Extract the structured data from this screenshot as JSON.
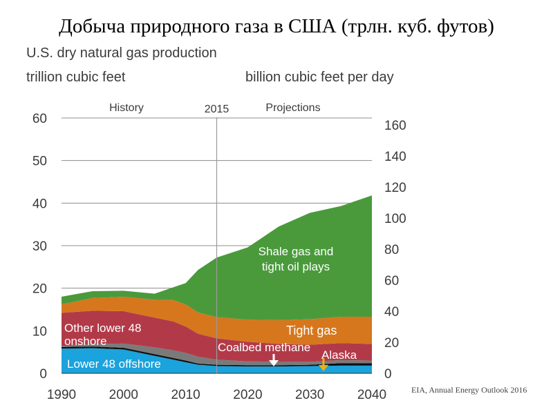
{
  "slide_title": "Добыча природного газа в США (трлн. куб. футов)",
  "source": "EIA, Annual Energy Outlook 2016",
  "chart_data": {
    "type": "area",
    "title": "U.S. dry natural gas production",
    "left_unit": "trillion cubic feet",
    "right_unit": "billion cubic feet per day",
    "period_labels": {
      "history": "History",
      "divider": "2015",
      "projections": "Projections"
    },
    "divider_year": 2015,
    "xlim": [
      1990,
      2040
    ],
    "ylim": [
      0,
      60
    ],
    "y_ticks": [
      0,
      10,
      20,
      30,
      40,
      50,
      60
    ],
    "x_ticks": [
      1990,
      2000,
      2010,
      2020,
      2030,
      2040
    ],
    "right_ylim": [
      0,
      164.4
    ],
    "right_ticks": [
      0,
      20,
      40,
      60,
      80,
      100,
      120,
      140,
      160
    ],
    "grid": true,
    "x": [
      1990,
      1995,
      2000,
      2005,
      2008,
      2010,
      2012,
      2015,
      2020,
      2025,
      2030,
      2035,
      2040
    ],
    "series": [
      {
        "name": "Lower 48 offshore",
        "label": "Lower 48 offshore",
        "color": "#1aa3dc",
        "label_color": "#ffffff",
        "values": [
          5.8,
          5.9,
          5.6,
          4.1,
          3.2,
          2.6,
          2.0,
          1.7,
          1.6,
          1.6,
          1.7,
          1.8,
          1.8
        ]
      },
      {
        "name": "Alaska",
        "label": "Alaska",
        "color": "#111111",
        "label_color": "#ffffff",
        "values": [
          0.4,
          0.4,
          0.4,
          0.4,
          0.4,
          0.4,
          0.3,
          0.3,
          0.3,
          0.3,
          0.3,
          0.6,
          0.6
        ]
      },
      {
        "name": "Coalbed methane",
        "label": "Coalbed methane",
        "color": "#7a7a7a",
        "label_color": "#ffffff",
        "values": [
          0.2,
          0.6,
          1.0,
          1.6,
          1.8,
          1.8,
          1.6,
          1.2,
          0.9,
          0.8,
          0.7,
          0.7,
          0.6
        ]
      },
      {
        "name": "Other lower 48 onshore",
        "label": "Other lower 48 onshore",
        "color": "#b23a48",
        "label_color": "#ffffff",
        "values": [
          7.8,
          7.8,
          7.6,
          7.0,
          6.8,
          6.2,
          5.4,
          5.0,
          4.6,
          4.2,
          4.0,
          4.0,
          3.9
        ]
      },
      {
        "name": "Tight gas",
        "label": "Tight gas",
        "color": "#d6771d",
        "label_color": "#ffffff",
        "values": [
          2.0,
          3.0,
          3.4,
          4.2,
          5.0,
          5.2,
          5.0,
          5.0,
          5.2,
          5.6,
          6.0,
          6.2,
          6.4
        ]
      },
      {
        "name": "Shale gas and tight oil plays",
        "label": "Shale gas and tight oil plays",
        "color": "#4a9a3c",
        "label_color": "#ffffff",
        "values": [
          1.8,
          1.6,
          1.4,
          1.4,
          3.0,
          5.0,
          10.0,
          14.0,
          17.0,
          22.0,
          25.0,
          26.0,
          28.5
        ]
      }
    ]
  }
}
